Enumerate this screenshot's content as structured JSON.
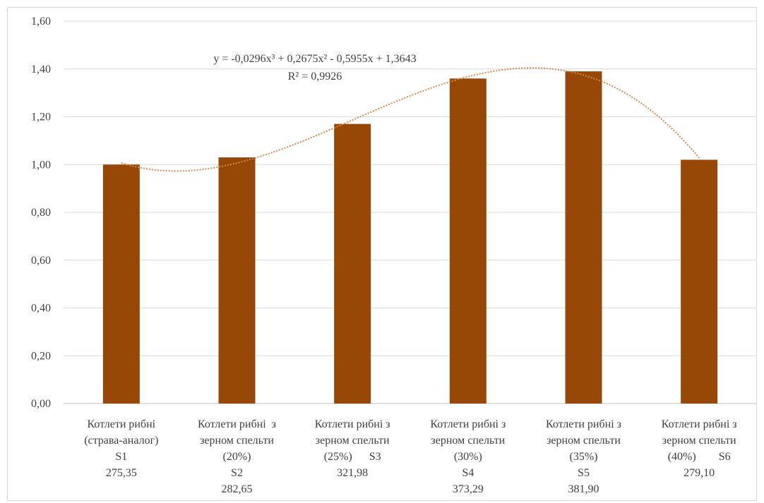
{
  "chart_data": {
    "type": "bar",
    "title": "",
    "xlabel": "",
    "ylabel": "",
    "ylim": [
      0,
      1.6
    ],
    "yticks": [
      "0,00",
      "0,20",
      "0,40",
      "0,60",
      "0,80",
      "1,00",
      "1,20",
      "1,40",
      "1,60"
    ],
    "grid": true,
    "legend": "none",
    "bar_color": "#974806",
    "trend_color": "#d9864a",
    "categories": [
      [
        "Котлети рибні",
        "(страва-аналог)",
        "S1",
        "275,35"
      ],
      [
        "Котлети рибні  з",
        "зерном спельти",
        "(20%)",
        "S2",
        "282,65"
      ],
      [
        "Котлети рибні з",
        "зерном спельти",
        "(25%)      S3",
        "321,98"
      ],
      [
        "Котлети рибні з",
        "зерном спельти",
        "(30%)",
        "S4",
        "373,29"
      ],
      [
        "Котлети рибні з",
        "зерном спельти",
        "(35%)",
        "S5",
        "381,90"
      ],
      [
        "Котлети рибні з",
        "зерном спельти",
        "(40%)        S6",
        "279,10"
      ]
    ],
    "values": [
      1.0,
      1.03,
      1.17,
      1.36,
      1.39,
      1.02
    ],
    "trendline": {
      "type": "polynomial",
      "coefficients": [
        1.3643,
        -0.5955,
        0.2675,
        -0.0296
      ],
      "equation": "y = -0,0296x³ + 0,2675x²  - 0,5955x + 1,3643",
      "r2": "R² = 0,9926"
    }
  }
}
